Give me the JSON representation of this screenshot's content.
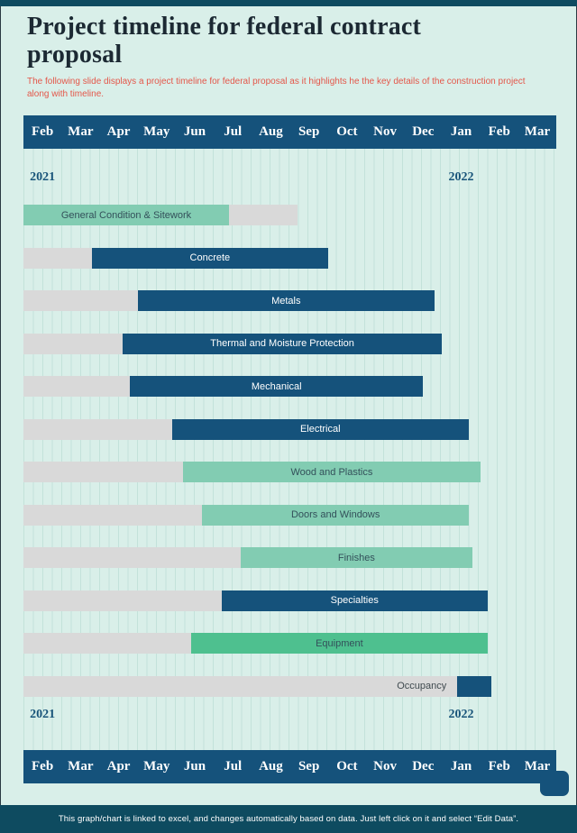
{
  "header": {
    "title": "Project timeline for federal contract proposal",
    "subtitle": "The following slide displays a project timeline for federal proposal as it highlights he the key details of the construction project along with timeline."
  },
  "footer": {
    "note": "This graph/chart is linked to excel,  and changes automatically based on data. Just left click on it and select “Edit Data”."
  },
  "chart_data": {
    "type": "bar",
    "variant": "gantt",
    "title": "Project timeline for federal contract proposal",
    "months": [
      "Feb",
      "Mar",
      "Apr",
      "May",
      "Jun",
      "Jul",
      "Aug",
      "Sep",
      "Oct",
      "Nov",
      "Dec",
      "Jan",
      "Feb",
      "Mar"
    ],
    "years": [
      {
        "label": "2021",
        "month_index": 0
      },
      {
        "label": "2022",
        "month_index": 11
      }
    ],
    "axis_total_months": 14,
    "grid": "vertical-ruled",
    "colors": {
      "blue": "#15527b",
      "green_light": "#82ccb2",
      "green_mid": "#4ec08f",
      "track": "#d9d9d9",
      "label_light": "#ffffff",
      "label_dark": "#33505a",
      "background": "#d9efe9",
      "accent_red": "#e4574a",
      "footer_bar": "#0e4b60"
    },
    "tasks": [
      {
        "name": "General Condition & Sitework",
        "start": 0,
        "end": 5.4,
        "track_end": 7.2,
        "color": "green_light",
        "text": "dark"
      },
      {
        "name": "Concrete",
        "start": 1.8,
        "end": 8.0,
        "track_end": 8.0,
        "color": "blue",
        "text": "light"
      },
      {
        "name": "Metals",
        "start": 3.0,
        "end": 10.8,
        "track_end": 10.8,
        "color": "blue",
        "text": "light"
      },
      {
        "name": "Thermal and Moisture Protection",
        "start": 2.6,
        "end": 11.0,
        "track_end": 11.0,
        "color": "blue",
        "text": "light"
      },
      {
        "name": "Mechanical",
        "start": 2.8,
        "end": 10.5,
        "track_end": 10.5,
        "color": "blue",
        "text": "light"
      },
      {
        "name": "Electrical",
        "start": 3.9,
        "end": 11.7,
        "track_end": 11.7,
        "color": "blue",
        "text": "light"
      },
      {
        "name": "Wood and Plastics",
        "start": 4.2,
        "end": 12.0,
        "track_end": 12.0,
        "color": "green_light",
        "text": "dark"
      },
      {
        "name": "Doors and Windows",
        "start": 4.7,
        "end": 11.7,
        "track_end": 11.7,
        "color": "green_light",
        "text": "dark"
      },
      {
        "name": "Finishes",
        "start": 5.7,
        "end": 11.8,
        "track_end": 11.8,
        "color": "green_light",
        "text": "dark"
      },
      {
        "name": "Specialties",
        "start": 5.2,
        "end": 12.2,
        "track_end": 12.2,
        "color": "blue",
        "text": "light"
      },
      {
        "name": "Equipment",
        "start": 4.4,
        "end": 12.2,
        "track_end": 12.2,
        "color": "green_mid",
        "text": "dark"
      },
      {
        "name": "Occupancy",
        "start": 11.4,
        "end": 12.3,
        "track_end": 12.3,
        "color": "blue",
        "text": "dark",
        "label_on": "track"
      }
    ]
  }
}
